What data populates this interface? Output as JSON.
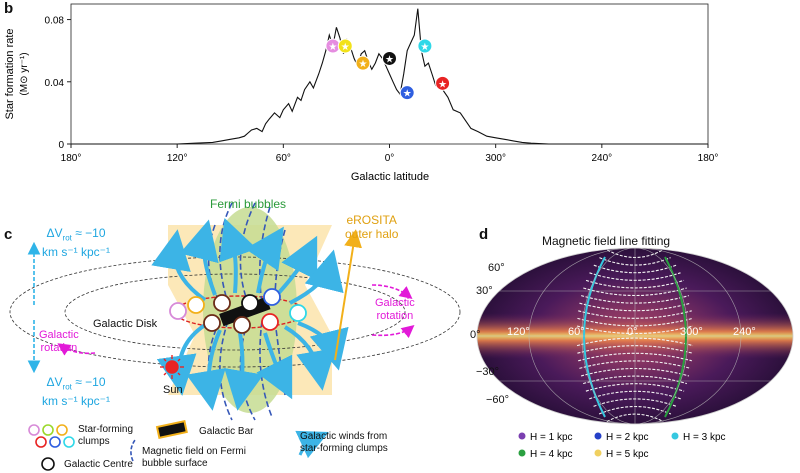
{
  "panels": {
    "b": {
      "letter": "b"
    },
    "c": {
      "letter": "c"
    },
    "d": {
      "letter": "d"
    }
  },
  "chart_data": {
    "type": "line",
    "title": "",
    "xlabel": "Galactic latitude",
    "ylabel": "Star formation rate",
    "ylabel_unit": "(M⊙ yr⁻¹)",
    "xtick_labels": [
      "180°",
      "120°",
      "60°",
      "0°",
      "300°",
      "240°",
      "180°"
    ],
    "ytick_labels": [
      "0",
      "0.04",
      "0.08"
    ],
    "ylim": [
      0,
      0.09
    ],
    "xlim": [
      180,
      -180
    ],
    "series": [
      {
        "x": [
          180,
          170,
          160,
          150,
          140,
          130,
          120,
          110,
          100,
          95,
          90,
          85,
          82,
          80,
          78,
          75,
          72,
          70,
          68,
          65,
          62,
          60,
          57,
          55,
          52,
          50,
          48,
          45,
          43,
          40,
          38,
          36,
          34,
          32,
          30,
          28,
          26,
          24,
          22,
          20,
          18,
          16,
          14,
          12,
          10,
          8,
          6,
          4,
          2,
          0,
          -2,
          -4,
          -6,
          -8,
          -10,
          -12,
          -14,
          -16,
          -18,
          -20,
          -22,
          -24,
          -26,
          -28,
          -30,
          -33,
          -36,
          -40,
          -43,
          -46,
          -50,
          -55,
          -60,
          -65,
          -70,
          -75,
          -80,
          -90,
          -100,
          -120,
          -150,
          -180
        ],
        "y": [
          0,
          0,
          0,
          0,
          0,
          0,
          0,
          0.0005,
          0.001,
          0.002,
          0.003,
          0.004,
          0.005,
          0.007,
          0.009,
          0.01,
          0.008,
          0.013,
          0.016,
          0.02,
          0.017,
          0.022,
          0.026,
          0.021,
          0.03,
          0.028,
          0.035,
          0.04,
          0.036,
          0.045,
          0.052,
          0.06,
          0.07,
          0.063,
          0.075,
          0.068,
          0.058,
          0.067,
          0.062,
          0.055,
          0.05,
          0.058,
          0.06,
          0.053,
          0.048,
          0.052,
          0.058,
          0.055,
          0.05,
          0.045,
          0.04,
          0.035,
          0.032,
          0.045,
          0.06,
          0.065,
          0.07,
          0.087,
          0.06,
          0.05,
          0.052,
          0.045,
          0.038,
          0.042,
          0.035,
          0.03,
          0.022,
          0.02,
          0.015,
          0.01,
          0.008,
          0.005,
          0.004,
          0.003,
          0.002,
          0.001,
          0.0005,
          0,
          0,
          0,
          0,
          0
        ]
      }
    ],
    "markers": [
      {
        "name": "clump-pink",
        "x": 32,
        "y": 0.063,
        "color": "#e58de0"
      },
      {
        "name": "clump-yellow",
        "x": 25,
        "y": 0.063,
        "color": "#f2e21a"
      },
      {
        "name": "clump-orange",
        "x": 15,
        "y": 0.052,
        "color": "#f2b01a"
      },
      {
        "name": "galactic-centre",
        "x": 0,
        "y": 0.055,
        "color": "#111111"
      },
      {
        "name": "clump-blue",
        "x": -10,
        "y": 0.033,
        "color": "#2f5fe0"
      },
      {
        "name": "clump-cyan",
        "x": -20,
        "y": 0.063,
        "color": "#2fd8e8"
      },
      {
        "name": "clump-red",
        "x": -30,
        "y": 0.039,
        "color": "#e82424"
      }
    ]
  },
  "schematic": {
    "fermi_bubbles": "Fermi bubbles",
    "erosita_line1": "eROSITA",
    "erosita_line2": "outer halo",
    "delta_v_top_1": "ΔV",
    "delta_v_top_sub": "rot",
    "delta_v_top_2": "≈ −10",
    "delta_v_top_3": "km s⁻¹ kpc⁻¹",
    "delta_v_bottom_1": "ΔV",
    "delta_v_bottom_sub": "rot",
    "delta_v_bottom_2": "≈ −10",
    "delta_v_bottom_3": "km s⁻¹ kpc⁻¹",
    "galactic_rotation_left_1": "Galactic",
    "galactic_rotation_left_2": "rotation",
    "galactic_rotation_right_1": "Galactic",
    "galactic_rotation_right_2": "rotation",
    "galactic_disk": "Galactic Disk",
    "sun": "Sun",
    "legend": {
      "star_forming_1": "Star-forming",
      "star_forming_2": "clumps",
      "galactic_centre": "Galactic Centre",
      "galactic_bar": "Galactic Bar",
      "magnetic_1": "Magnetic field on Fermi",
      "magnetic_2": "bubble surface",
      "winds_1": "Galactic winds from",
      "winds_2": "star-forming clumps"
    }
  },
  "sky_map": {
    "title": "Magnetic field line fitting",
    "lat_labels": [
      "60°",
      "30°",
      "0°",
      "−30°",
      "−60°"
    ],
    "lon_labels": [
      "120°",
      "60°",
      "0°",
      "300°",
      "240°"
    ],
    "legend": [
      {
        "label": "H = 1 kpc",
        "color": "#7a3fb0"
      },
      {
        "label": "H = 2 kpc",
        "color": "#2540c8"
      },
      {
        "label": "H = 3 kpc",
        "color": "#36c8e0"
      },
      {
        "label": "H = 4 kpc",
        "color": "#2aa040"
      },
      {
        "label": "H = 5 kpc",
        "color": "#f0d060"
      }
    ]
  }
}
